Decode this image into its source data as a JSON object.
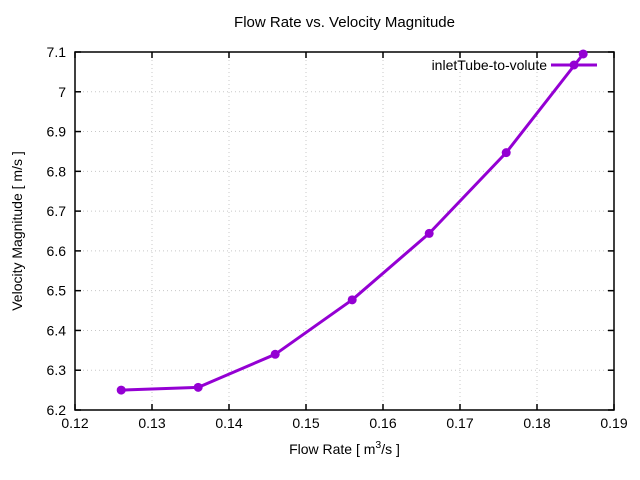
{
  "chart_data": {
    "type": "line",
    "title": "Flow Rate vs. Velocity Magnitude",
    "xlabel": {
      "text": "Flow Rate [ m³/s ]",
      "prefix": "Flow Rate [ m",
      "sup": "3",
      "suffix": "/s ]"
    },
    "ylabel": "Velocity Magnitude [ m/s ]",
    "xlim": [
      0.12,
      0.19
    ],
    "ylim": [
      6.2,
      7.1
    ],
    "xticks": {
      "values": [
        0.12,
        0.13,
        0.14,
        0.15,
        0.16,
        0.17,
        0.18,
        0.19
      ],
      "labels": [
        "0.12",
        "0.13",
        "0.14",
        "0.15",
        "0.16",
        "0.17",
        "0.18",
        "0.19"
      ]
    },
    "yticks": {
      "values": [
        6.2,
        6.3,
        6.4,
        6.5,
        6.6,
        6.7,
        6.8,
        6.9,
        7.0,
        7.1
      ],
      "labels": [
        "6.2",
        "6.3",
        "6.4",
        "6.5",
        "6.6",
        "6.7",
        "6.8",
        "6.9",
        "7",
        "7.1"
      ]
    },
    "grid": true,
    "legend_position": "top-right-inside",
    "series": [
      {
        "name": "inletTube-to-volute",
        "color": "#9400d3",
        "marker": "filled-circle",
        "x": [
          0.126,
          0.136,
          0.146,
          0.156,
          0.166,
          0.176,
          0.186
        ],
        "y": [
          6.25,
          6.257,
          6.34,
          6.477,
          6.644,
          6.847,
          7.095
        ]
      }
    ],
    "colors": {
      "line": "#9400d3",
      "grid": "#c8c8c8",
      "axis": "#000000",
      "background": "#ffffff"
    }
  }
}
